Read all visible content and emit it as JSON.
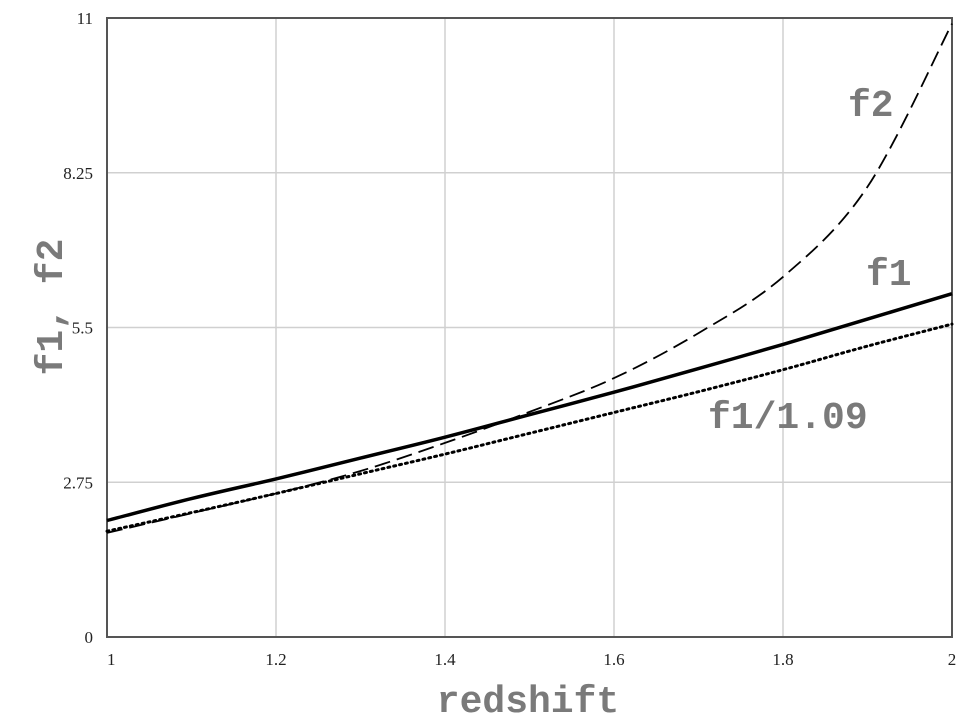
{
  "chart_data": {
    "type": "line",
    "title": "",
    "xlabel": "redshift",
    "ylabel": "f1, f2",
    "xlim": [
      1,
      2
    ],
    "ylim": [
      0,
      11
    ],
    "x_ticks": [
      1,
      1.2,
      1.4,
      1.6,
      1.8,
      2
    ],
    "x_tick_labels": [
      "1",
      "1.2",
      "1.4",
      "1.6",
      "1.8",
      "2"
    ],
    "y_ticks": [
      0,
      2.75,
      5.5,
      8.25,
      11
    ],
    "y_tick_labels": [
      "0",
      "2.75",
      "5.5",
      "8.25",
      "11"
    ],
    "grid": true,
    "legend": "labels placed next to curves",
    "colors": {
      "grid": "#d0d0d0",
      "frame": "#555555",
      "curves": "#000000",
      "labels": "#7a7a7a"
    },
    "x": [
      1.0,
      1.1,
      1.2,
      1.3,
      1.4,
      1.5,
      1.6,
      1.7,
      1.8,
      1.9,
      2.0
    ],
    "series": [
      {
        "name": "f1",
        "style": "solid",
        "values": [
          2.07,
          2.46,
          2.81,
          3.18,
          3.55,
          3.95,
          4.35,
          4.77,
          5.2,
          5.65,
          6.1
        ]
      },
      {
        "name": "f2",
        "style": "dashed",
        "values": [
          1.85,
          2.2,
          2.55,
          2.95,
          3.45,
          4.0,
          4.6,
          5.4,
          6.4,
          8.0,
          10.9
        ]
      },
      {
        "name": "f1/1.09",
        "style": "dotted",
        "values": [
          1.88,
          2.21,
          2.55,
          2.9,
          3.25,
          3.62,
          3.99,
          4.36,
          4.75,
          5.17,
          5.56
        ]
      }
    ]
  }
}
